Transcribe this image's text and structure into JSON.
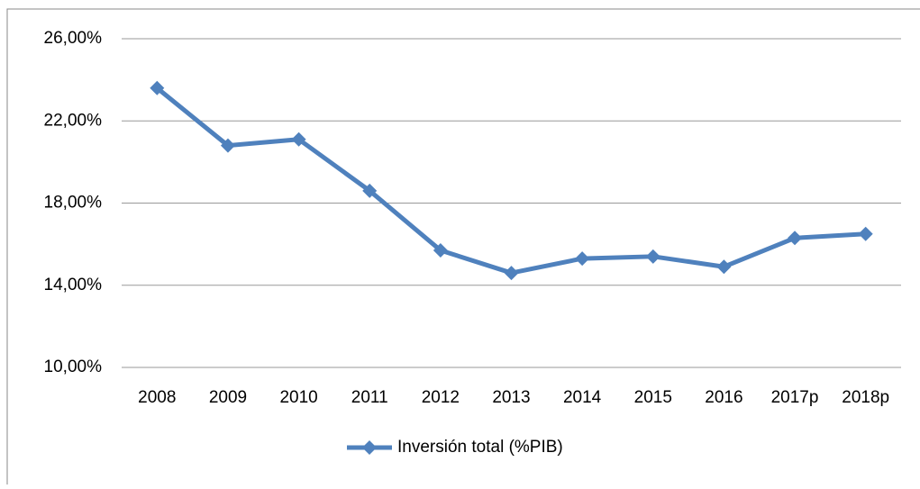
{
  "chart_data": {
    "type": "line",
    "categories": [
      "2008",
      "2009",
      "2010",
      "2011",
      "2012",
      "2013",
      "2014",
      "2015",
      "2016",
      "2017p",
      "2018p"
    ],
    "series": [
      {
        "name": "Inversión total (%PIB)",
        "color": "#4f81bd",
        "values": [
          23.6,
          20.8,
          21.1,
          18.6,
          15.7,
          14.6,
          15.3,
          15.4,
          14.9,
          16.3,
          16.5
        ]
      }
    ],
    "ylim": [
      10,
      26
    ],
    "yticks": [
      {
        "value": 10,
        "label": "10,00%"
      },
      {
        "value": 14,
        "label": "14,00%"
      },
      {
        "value": 18,
        "label": "18,00%"
      },
      {
        "value": 22,
        "label": "22,00%"
      },
      {
        "value": 26,
        "label": "26,00%"
      }
    ],
    "grid": true,
    "legend": "bottom"
  }
}
